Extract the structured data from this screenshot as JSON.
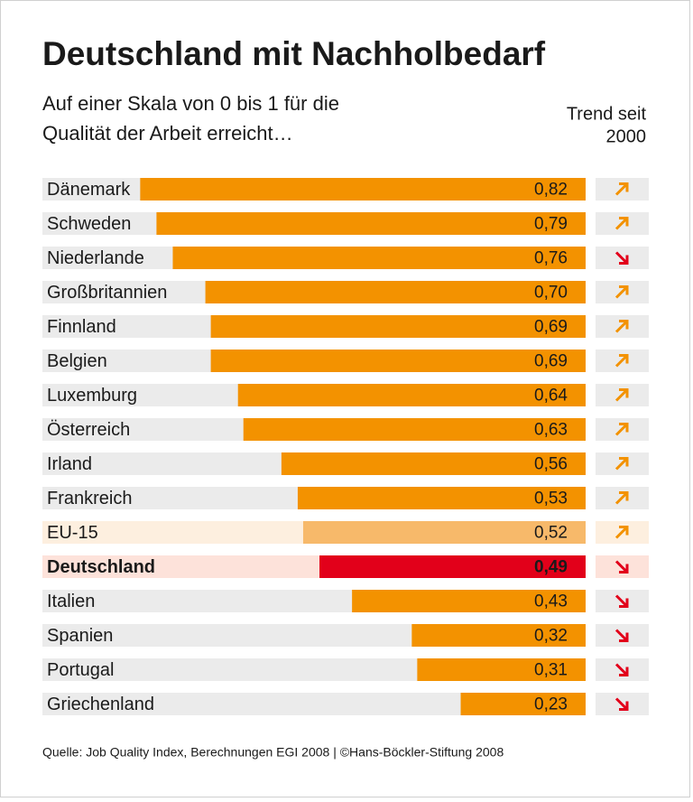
{
  "chart_data": {
    "type": "bar",
    "orientation": "horizontal",
    "title": "Deutschland mit Nachholbedarf",
    "subtitle": [
      "Auf einer Skala von 0 bis 1 für die",
      "Qualität der Arbeit erreicht…"
    ],
    "trend_header": [
      "Trend seit",
      "2000"
    ],
    "source": "Quelle: Job Quality Index, Berechnungen EGI 2008 | ©Hans-Böckler-Stiftung 2008",
    "categories": [
      "Dänemark",
      "Schweden",
      "Niederlande",
      "Großbritannien",
      "Finnland",
      "Belgien",
      "Luxemburg",
      "Österreich",
      "Irland",
      "Frankreich",
      "EU-15",
      "Deutschland",
      "Italien",
      "Spanien",
      "Portugal",
      "Griechenland"
    ],
    "values": [
      0.82,
      0.79,
      0.76,
      0.7,
      0.69,
      0.69,
      0.64,
      0.63,
      0.56,
      0.53,
      0.52,
      0.49,
      0.43,
      0.32,
      0.31,
      0.23
    ],
    "value_labels": [
      "0,82",
      "0,79",
      "0,76",
      "0,70",
      "0,69",
      "0,69",
      "0,64",
      "0,63",
      "0,56",
      "0,53",
      "0,52",
      "0,49",
      "0,43",
      "0,32",
      "0,31",
      "0,23"
    ],
    "trend": [
      "up",
      "up",
      "down",
      "up",
      "up",
      "up",
      "up",
      "up",
      "up",
      "up",
      "up",
      "down",
      "down",
      "down",
      "down",
      "down"
    ],
    "trend_colors": {
      "up": "#f39200",
      "down": "#e2001a"
    },
    "color": "#f39200",
    "highlight": {
      "10": {
        "bar": "#f7b96a",
        "row": "#fdefdf"
      },
      "11": {
        "bar": "#e2001a",
        "row": "#fde2da",
        "bold": true
      }
    },
    "row_color": "#ebebeb",
    "xlim": [
      0,
      1
    ],
    "x_reversed": true
  }
}
